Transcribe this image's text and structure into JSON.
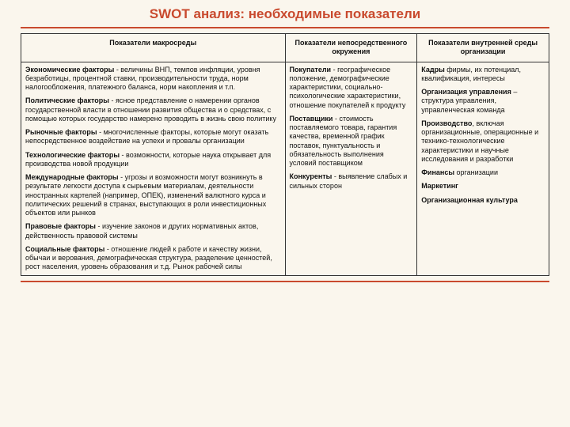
{
  "title": "SWOT анализ: необходимые показатели",
  "colors": {
    "accent": "#c94a2e",
    "background": "#faf6ed",
    "border": "#333"
  },
  "columns": [
    "Показатели макросреды",
    "Показатели непосредственного окружения",
    "Показатели внутренней среды организации"
  ],
  "col1": [
    {
      "bold": "Экономические факторы",
      "rest": " - величины ВНП, темпов инфляции, уровня безработицы, процентной ставки, производительности труда, норм налогообложения, платежного баланса, норм накопления и т.п."
    },
    {
      "bold": "Политические факторы",
      "rest": " - ясное представление о намерении органов государственной власти в отношении развития общества и о средствах, с помощью которых государство намерено проводить в жизнь свою политику"
    },
    {
      "bold": "Рыночные факторы",
      "rest": " - многочисленные факторы, которые могут оказать непосредственное воздействие на успехи и провалы организации"
    },
    {
      "bold": "Технологические факторы",
      "rest": " - возможности, которые наука открывает для производства новой продукции"
    },
    {
      "bold": "Международные факторы",
      "rest": " - угрозы и возможности могут возникнуть в результате легкости доступа к сырьевым материалам, деятельности иностранных картелей (например, ОПЕК), изменений валютного курса и политических решений в странах, выступающих в роли инвестиционных объектов или рынков"
    },
    {
      "bold": "Правовые факторы",
      "rest": " - изучение законов и других нормативных актов, действенность правовой системы"
    },
    {
      "bold": "Социальные факторы",
      "rest": " - отношение людей к работе и качеству жизни, обычаи и верования, демографическая структура, разделение ценностей, рост населения, уровень образования и т.д. Рынок рабочей силы"
    }
  ],
  "col2": [
    {
      "bold": "Покупатели",
      "rest": " - географическое положение, демографические характеристики, социально-психологические характеристики, отношение покупателей к продукту"
    },
    {
      "bold": "Поставщики",
      "rest": " - стоимость поставляемого товара, гарантия качества, временной график поставок, пунктуальность и обязательность выполнения условий поставщиком"
    },
    {
      "bold": "Конкуренты",
      "rest": " - выявление слабых и сильных сторон"
    }
  ],
  "col3": [
    {
      "bold": "Кадры",
      "rest": " фирмы, их потенциал, квалификация, интересы"
    },
    {
      "bold": "Организация управления",
      "rest": " – структура управления, управленческая команда"
    },
    {
      "bold": "Производство",
      "rest": ", включая организационные, операционные и технико-технологические характеристики и научные исследования и разработки"
    },
    {
      "bold": "Финансы",
      "rest": " организации"
    },
    {
      "bold": "Маркетинг",
      "rest": ""
    },
    {
      "bold": "Организационная культура",
      "rest": ""
    }
  ]
}
